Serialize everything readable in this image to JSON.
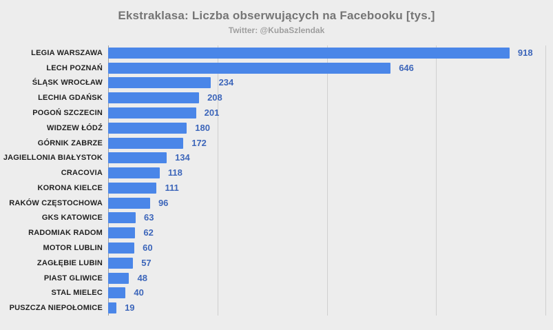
{
  "chart_data": {
    "type": "bar",
    "orientation": "horizontal",
    "title": "Ekstraklasa: Liczba obserwujących na Facebooku [tys.]",
    "subtitle": "Twitter: @KubaSzlendak",
    "categories": [
      "LEGIA WARSZAWA",
      "LECH POZNAŃ",
      "ŚLĄSK WROCŁAW",
      "LECHIA GDAŃSK",
      "POGOŃ SZCZECIN",
      "WIDZEW ŁÓDŹ",
      "GÓRNIK ZABRZE",
      "JAGIELLONIA BIAŁYSTOK",
      "CRACOVIA",
      "KORONA KIELCE",
      "RAKÓW CZĘSTOCHOWA",
      "GKS KATOWICE",
      "RADOMIAK RADOM",
      "MOTOR LUBLIN",
      "ZAGŁĘBIE LUBIN",
      "PIAST GLIWICE",
      "STAL MIELEC",
      "PUSZCZA NIEPOŁOMICE"
    ],
    "values": [
      918,
      646,
      234,
      208,
      201,
      180,
      172,
      134,
      118,
      111,
      96,
      63,
      62,
      60,
      57,
      48,
      40,
      19
    ],
    "xlabel": "",
    "ylabel": "",
    "xlim": [
      0,
      1000
    ],
    "gridlines": [
      0,
      250,
      500,
      750,
      1000
    ],
    "grid": true,
    "legend": "none",
    "value_labels_shown": true,
    "colors": {
      "bar": "#4a86e8",
      "value_label": "#3d66ba",
      "title": "#757575",
      "subtitle": "#9e9e9e",
      "category_label": "#1f1f1f",
      "gridline": "#cfcfcf",
      "axis_line": "#9e9e9e",
      "background": "#ededed"
    }
  }
}
